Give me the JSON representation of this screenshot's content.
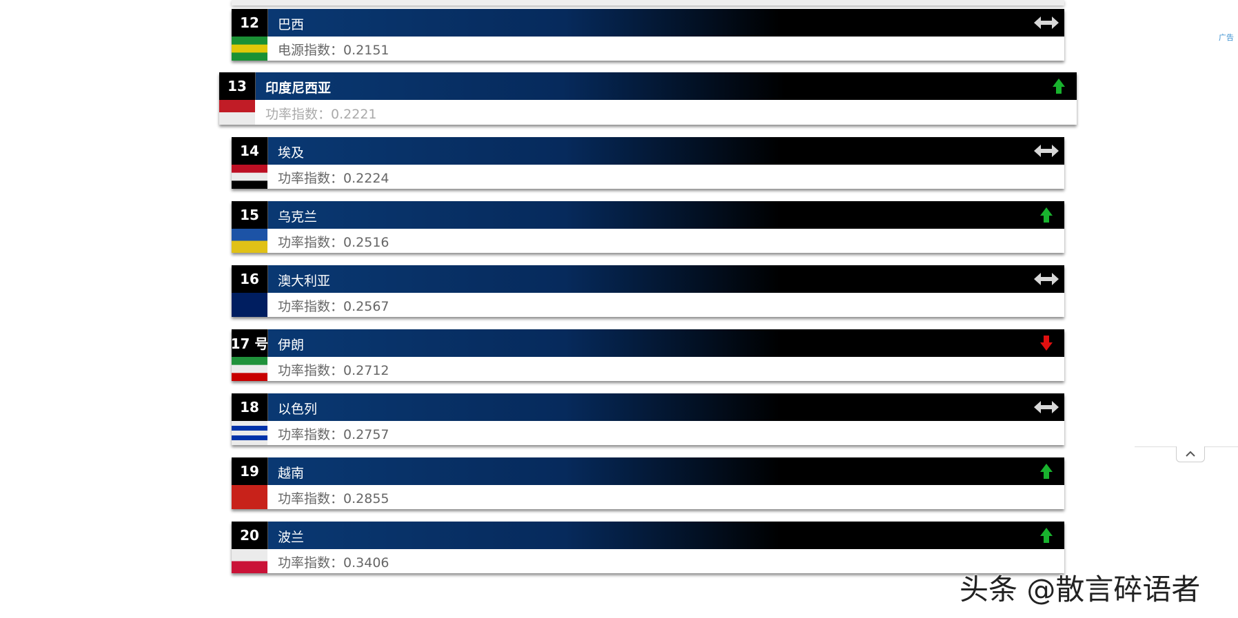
{
  "ad_label": "广告",
  "watermark": "头条 @散言碎语者",
  "rows": [
    {
      "rank": 12,
      "name": "巴西",
      "index_label": "电源指数：",
      "index": 0.2151,
      "trend": "same",
      "flag": [
        "#1e9e3a",
        "#f5d90a",
        "#1e9e3a"
      ]
    },
    {
      "rank": 13,
      "name": "印度尼西亚",
      "index_label": "功率指数：",
      "index": 0.2221,
      "trend": "up",
      "highlighted": true,
      "flag": [
        "#d21f2a",
        "#ffffff"
      ]
    },
    {
      "rank": 14,
      "name": "埃及",
      "index_label": "功率指数：",
      "index": 0.2224,
      "trend": "same",
      "flag": [
        "#ce1126",
        "#ffffff",
        "#000000"
      ]
    },
    {
      "rank": 15,
      "name": "乌克兰",
      "index_label": "功率指数：",
      "index": 0.2516,
      "trend": "up",
      "flag": [
        "#1f5bb5",
        "#f4d21a"
      ]
    },
    {
      "rank": 16,
      "name": "澳大利亚",
      "index_label": "功率指数：",
      "index": 0.2567,
      "trend": "same",
      "flag": [
        "#012169",
        "#012169"
      ]
    },
    {
      "rank": "17 号",
      "name": "伊朗",
      "index_label": "功率指数：",
      "index": 0.2712,
      "trend": "down",
      "flag": [
        "#239f40",
        "#ffffff",
        "#da0000"
      ]
    },
    {
      "rank": 18,
      "name": "以色列",
      "index_label": "功率指数：",
      "index": 0.2757,
      "trend": "same",
      "flag": [
        "#ffffff",
        "#0038b8",
        "#ffffff",
        "#0038b8",
        "#ffffff"
      ]
    },
    {
      "rank": 19,
      "name": "越南",
      "index_label": "功率指数：",
      "index": 0.2855,
      "trend": "up",
      "flag": [
        "#da251d"
      ]
    },
    {
      "rank": 20,
      "name": "波兰",
      "index_label": "功率指数：",
      "index": 0.3406,
      "trend": "up",
      "flag": [
        "#ffffff",
        "#dc143c"
      ]
    }
  ]
}
